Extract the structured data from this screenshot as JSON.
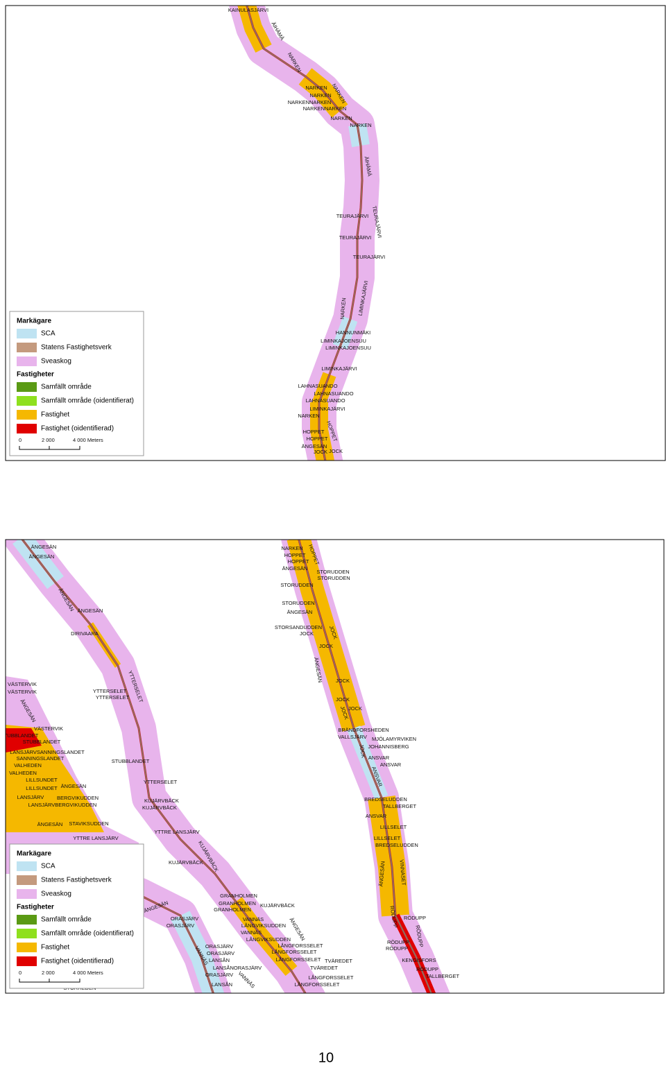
{
  "maps": [
    {
      "labels": [
        "KAINULASJÄRVI",
        "ÄIHÄMÄ",
        "NARKEN",
        "NARKEN",
        "NARKEN",
        "NARKEN",
        "NARKENNARKEN",
        "NARKENNARKEN",
        "NARKEN",
        "NARKEN",
        "ÄIHÄMÄ",
        "TEURAJÄRVI",
        "TEURAJÄRVI",
        "TEURAJÄRVI",
        "TEURAJÄRVI",
        "LIMINKAJÄRVI",
        "NARKEN",
        "HANNUNMÄKI",
        "LIMINKAJOENSUU",
        "LIMINKAJOENSUU",
        "LIMINKAJÄRVI",
        "LAHNASUANDO",
        "LAHNASUANDO",
        "LAHNASUANDO",
        "LIMINKAJÄRVI",
        "NARKEN",
        "HOPPET",
        "HOPPET",
        "HOPPET",
        "ÄNGESÄN",
        "JOCK",
        "JOCK"
      ],
      "legend": {
        "owner_title": "Markägare",
        "owners": [
          "SCA",
          "Statens Fastighetsverk",
          "Sveaskog"
        ],
        "property_title": "Fastigheter",
        "properties": [
          "Samfällt område",
          "Samfällt område (oidentifierat)",
          "Fastighet",
          "Fastighet (oidentifierad)"
        ],
        "scale_labels": [
          "0",
          "2 000",
          "4 000 Meters"
        ]
      }
    },
    {
      "labels": [
        "ÄNGESÄN",
        "ÄNGESÄN",
        "ÄNGESÄN",
        "ÄNGESÄN",
        "DIRIVAARA",
        "YTTERSELET",
        "YTTERSELET",
        "YTTERSELET",
        "VÄSTERVIK",
        "VÄSTERVIK",
        "ÄNGESÄN",
        "VÄSTERVIK",
        "STUBBLANDET",
        "STUBBLANDET",
        "LANSJÄRVSANNINGSLANDET",
        "SANNINGSLANDET",
        "VALHEDEN",
        "VALHEDEN",
        "LILLSUNDET",
        "ÄNGESÄN",
        "LILLSUNDET",
        "STUBBLANDET",
        "YTTERSELET",
        "BERGVIKUDDEN",
        "LANSJÄRV",
        "LANSJÄRVBERGVIKUDDEN",
        "KUJÄRVBÄCK",
        "KUJÄRVBÄCK",
        "ÄNGESÄN",
        "STAVIKSUDDEN",
        "YTTRE LANSJÄRV",
        "YTTRE LANSJÄRV",
        "KUJÄRVBÄCK",
        "KUJÄRVBÄCK",
        "GRANHOLMEN",
        "GRANHOLMEN",
        "GRANHOLMEN",
        "KUJÄRVBÄCK",
        "ÄNGESÄN",
        "ORASJÄRV",
        "ORASJÄRV",
        "VANNÄS",
        "LÅNGVIKSUDDEN",
        "VANNÄS",
        "LÅNGVIKSUDDEN",
        "ÄNGESÄN",
        "VANNÄS",
        "ORASJÄRV",
        "ORASJÄRV",
        "LANSÅN",
        "LANSÅNORASJÄRV",
        "ORASJÄRV",
        "VANNÄS",
        "LANSÅN",
        "LÅNGFORSSELET",
        "LÅNGFORSSELET",
        "LÅNGFORSSELET",
        "TVÄREDET",
        "TVÄREDET",
        "LÅNGFORSSELET",
        "LÅNGFORSSELET",
        "STORHEDEN",
        "NARKEN",
        "HOPPET",
        "HOPPET",
        "HOPPET",
        "ÄNGESÄN",
        "STORUDDEN",
        "STORUDDEN",
        "STORUDDEN",
        "STORUDDEN",
        "ÄNGESÄN",
        "STORSANDUDDEN",
        "JOCK",
        "JOCK",
        "JOCK",
        "ÄNGESÄN",
        "JOCK",
        "JOCK",
        "JOCK",
        "JOCK",
        "BRÄNDFORSHEDEN",
        "VALLSJÄRV",
        "MJÖLAMYRVIKEN",
        "JOHANNISBERG",
        "JOCK",
        "ANSVAR",
        "ANSVAR",
        "ANSVAR",
        "BREDSELUDDEN",
        "TALLBERGET",
        "ANSVAR",
        "LILLSELET",
        "LILLSELET",
        "BREDSELUDDEN",
        "ÄNGESÄN",
        "VINNASET",
        "RÖDUPP",
        "RÖDUPP",
        "RÖDUPP",
        "RÖDUPP",
        "RÖDUPP",
        "KENGISFORS",
        "RÖDUPP",
        "TALLBERGET"
      ],
      "legend": {
        "owner_title": "Markägare",
        "owners": [
          "SCA",
          "Statens Fastighetsverk",
          "Sveaskog"
        ],
        "property_title": "Fastigheter",
        "properties": [
          "Samfällt område",
          "Samfällt område (oidentifierat)",
          "Fastighet",
          "Fastighet (oidentifierad)"
        ],
        "scale_labels": [
          "0",
          "2 000",
          "4 000 Meters"
        ]
      }
    }
  ],
  "page_number": "10"
}
